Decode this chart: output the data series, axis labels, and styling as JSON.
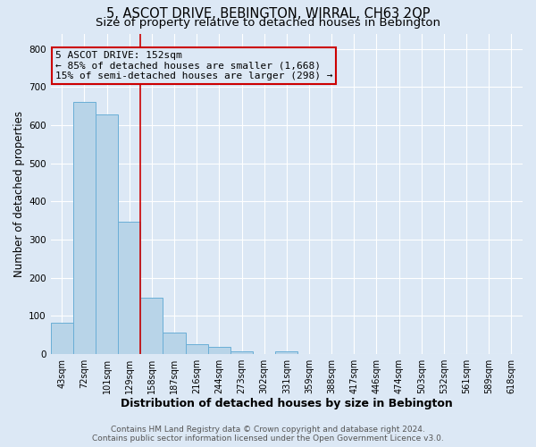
{
  "title": "5, ASCOT DRIVE, BEBINGTON, WIRRAL, CH63 2QP",
  "subtitle": "Size of property relative to detached houses in Bebington",
  "xlabel": "Distribution of detached houses by size in Bebington",
  "ylabel": "Number of detached properties",
  "bin_labels": [
    "43sqm",
    "72sqm",
    "101sqm",
    "129sqm",
    "158sqm",
    "187sqm",
    "216sqm",
    "244sqm",
    "273sqm",
    "302sqm",
    "331sqm",
    "359sqm",
    "388sqm",
    "417sqm",
    "446sqm",
    "474sqm",
    "503sqm",
    "532sqm",
    "561sqm",
    "589sqm",
    "618sqm"
  ],
  "bar_values": [
    83,
    660,
    628,
    348,
    147,
    57,
    27,
    18,
    8,
    0,
    7,
    0,
    0,
    0,
    0,
    0,
    0,
    0,
    0,
    0,
    0
  ],
  "bar_color": "#b8d4e8",
  "bar_edge_color": "#6aaed6",
  "vline_x_idx": 4,
  "vline_color": "#cc0000",
  "annotation_text": "5 ASCOT DRIVE: 152sqm\n← 85% of detached houses are smaller (1,668)\n15% of semi-detached houses are larger (298) →",
  "annotation_box_edge_color": "#cc0000",
  "annotation_bg_color": "#dce8f5",
  "ylim": [
    0,
    840
  ],
  "yticks": [
    0,
    100,
    200,
    300,
    400,
    500,
    600,
    700,
    800
  ],
  "footer_text": "Contains HM Land Registry data © Crown copyright and database right 2024.\nContains public sector information licensed under the Open Government Licence v3.0.",
  "fig_bg_color": "#dce8f5",
  "plot_bg_color": "#dce8f5",
  "grid_color": "#ffffff",
  "title_fontsize": 10.5,
  "subtitle_fontsize": 9.5,
  "xlabel_fontsize": 9,
  "ylabel_fontsize": 8.5,
  "tick_fontsize": 7,
  "annotation_fontsize": 8,
  "footer_fontsize": 6.5
}
